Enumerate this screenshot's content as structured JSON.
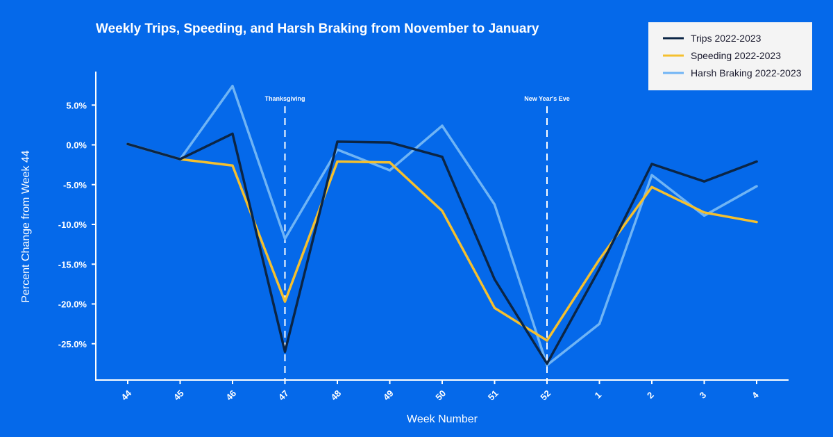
{
  "chart_data": {
    "type": "line",
    "title": "Weekly Trips, Speeding, and Harsh Braking from November to January",
    "xlabel": "Week Number",
    "ylabel": "Percent Change from Week 44",
    "categories": [
      "44",
      "45",
      "46",
      "47",
      "48",
      "49",
      "50",
      "51",
      "52",
      "1",
      "2",
      "3",
      "4"
    ],
    "ylim": [
      -29,
      9
    ],
    "yticks": [
      5,
      0,
      -5,
      -10,
      -15,
      -20,
      -25
    ],
    "ytick_labels": [
      "5.0%",
      "0.0%",
      "-5.0%",
      "-10.0%",
      "-15.0%",
      "-20.0%",
      "-25.0%"
    ],
    "grid": false,
    "legend_position": "top-right",
    "series": [
      {
        "name": "Trips 2022-2023",
        "color": "#0B2545",
        "values": [
          0.1,
          -1.8,
          1.4,
          -26.0,
          0.4,
          0.3,
          -1.5,
          -16.9,
          -27.5,
          -15.6,
          -2.4,
          -4.6,
          -2.1
        ]
      },
      {
        "name": "Speeding 2022-2023",
        "color": "#F5C02E",
        "values": [
          0.1,
          -1.8,
          -2.6,
          -19.7,
          -2.1,
          -2.2,
          -8.3,
          -20.5,
          -24.6,
          -14.4,
          -5.3,
          -8.5,
          -9.7
        ]
      },
      {
        "name": "Harsh Braking 2022-2023",
        "color": "#6FB4F5",
        "values": [
          0.1,
          -1.8,
          7.4,
          -11.8,
          -0.6,
          -3.2,
          2.4,
          -7.5,
          -27.7,
          -22.5,
          -3.8,
          -8.9,
          -5.2
        ]
      }
    ],
    "annotations": [
      {
        "label": "Thanksgiving",
        "x": "47"
      },
      {
        "label": "New Year's Eve",
        "x": "52"
      }
    ]
  }
}
